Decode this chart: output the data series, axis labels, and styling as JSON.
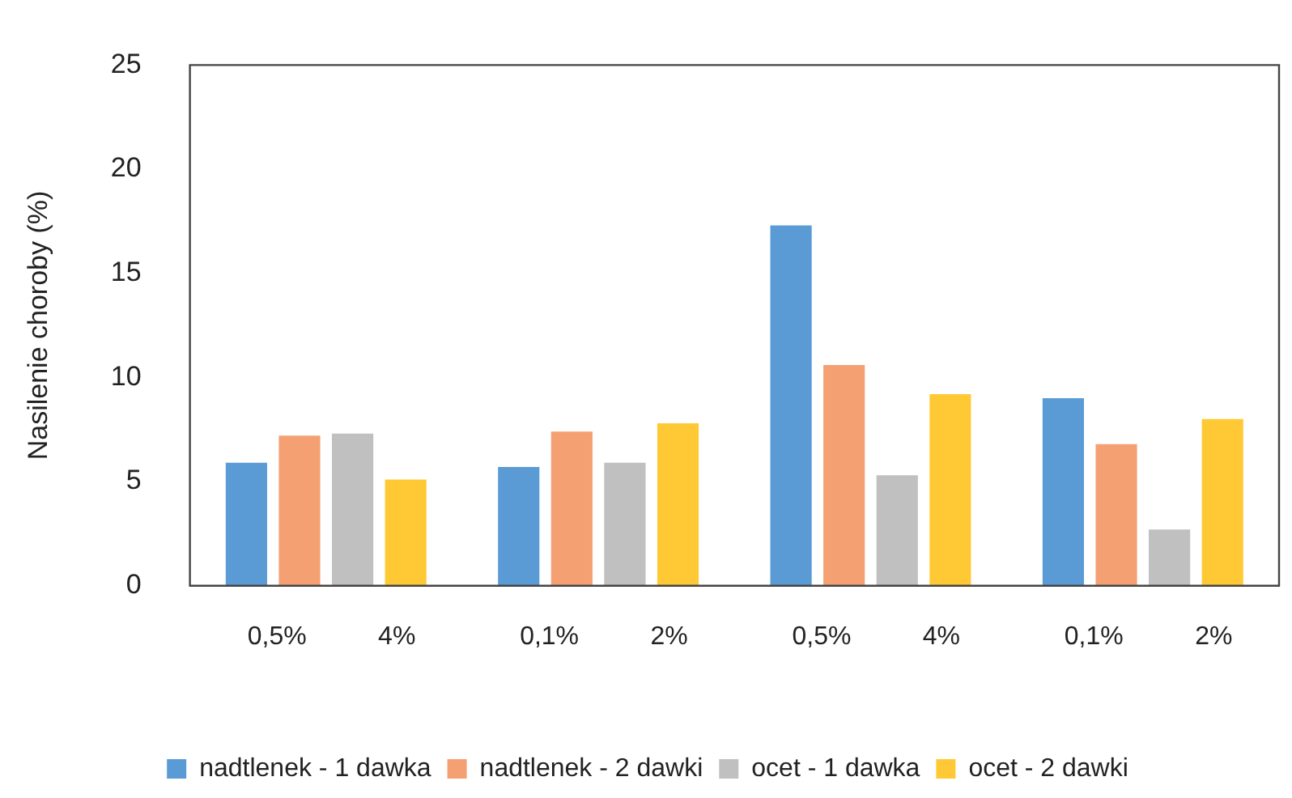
{
  "chart_data": {
    "type": "bar",
    "ylabel": "Nasilenie choroby (%)",
    "categories": [
      null,
      null,
      null,
      null
    ],
    "series": [
      {
        "name": "nadtlenek - 1 dawka",
        "color": "#5b9bd5",
        "values": [
          5.9,
          5.7,
          17.3,
          9.0
        ]
      },
      {
        "name": "nadtlenek - 2 dawki",
        "color": "#f4a072",
        "values": [
          7.2,
          7.4,
          10.6,
          6.8
        ]
      },
      {
        "name": "ocet - 1 dawka",
        "color": "#c0c0c0",
        "values": [
          7.3,
          5.9,
          5.3,
          2.7
        ]
      },
      {
        "name": "ocet - 2 dawki",
        "color": "#ffc935",
        "values": [
          5.1,
          7.8,
          9.2,
          8.0
        ]
      }
    ],
    "ylim": [
      0,
      25
    ],
    "yticks": [
      0,
      5,
      10,
      15,
      20,
      25
    ],
    "grid": false,
    "legend": "bottom",
    "annotations": [
      "0,5%",
      "4%",
      "0,1%",
      "2%",
      "0,5%",
      "4%",
      "0,1%",
      "2%"
    ]
  }
}
